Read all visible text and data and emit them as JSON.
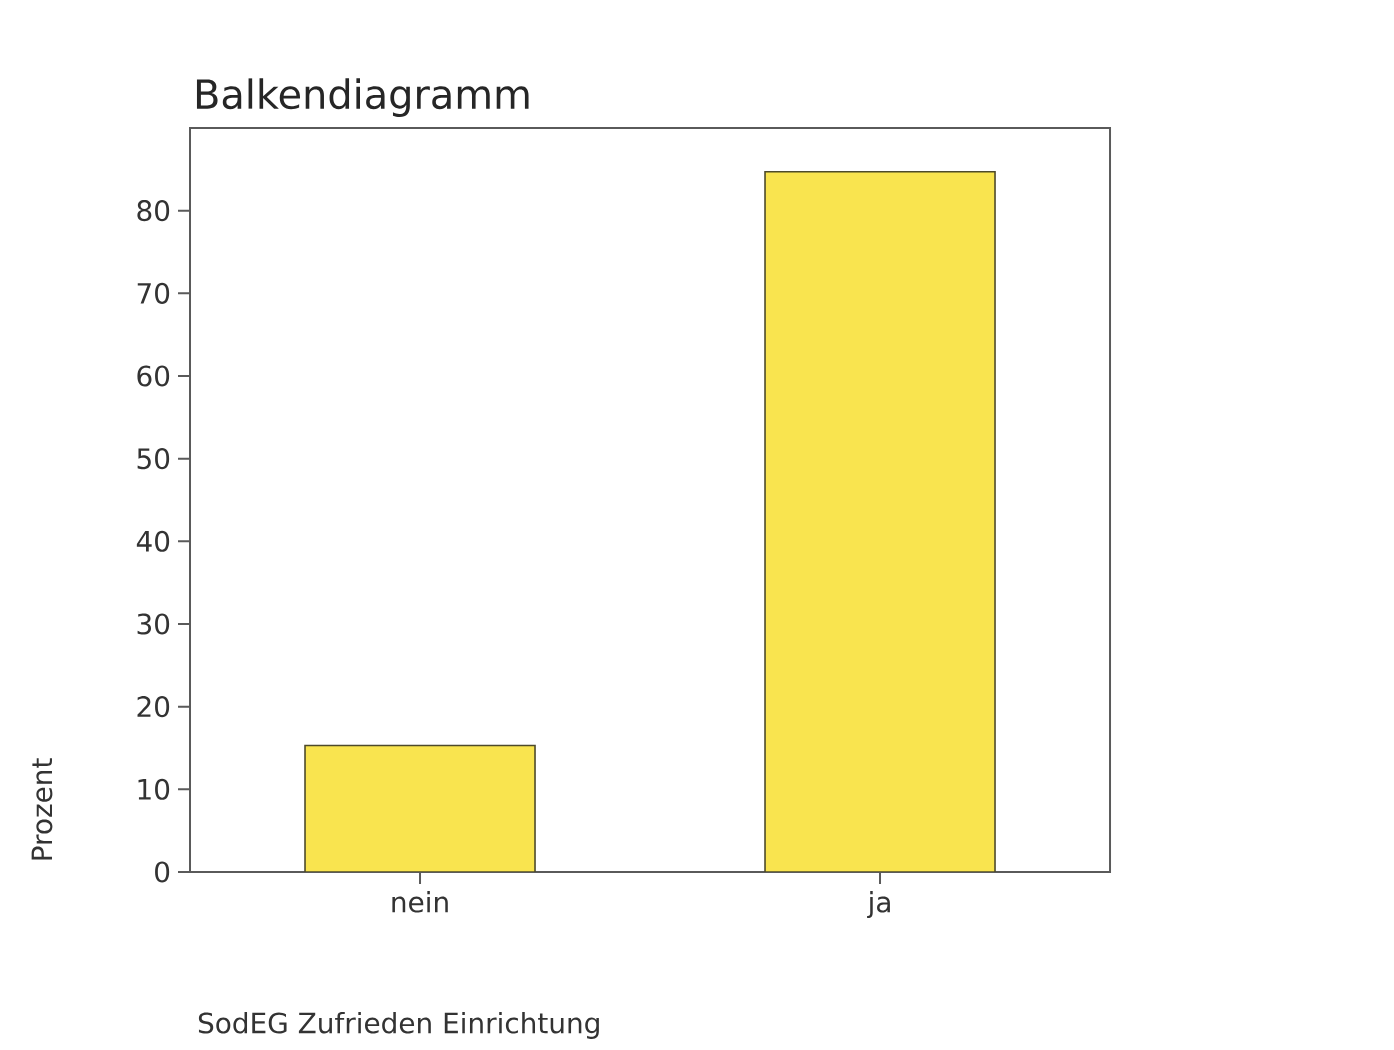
{
  "chart_data": {
    "type": "bar",
    "title": "Balkendiagramm",
    "xlabel": "SodEG Zufrieden Einrichtung",
    "ylabel": "Prozent",
    "categories": [
      "nein",
      "ja"
    ],
    "values": [
      15.3,
      84.7
    ],
    "color": "#f9e44f",
    "ylim": [
      0,
      90
    ],
    "yticks": [
      0,
      10,
      20,
      30,
      40,
      50,
      60,
      70,
      80
    ],
    "grid": false
  }
}
